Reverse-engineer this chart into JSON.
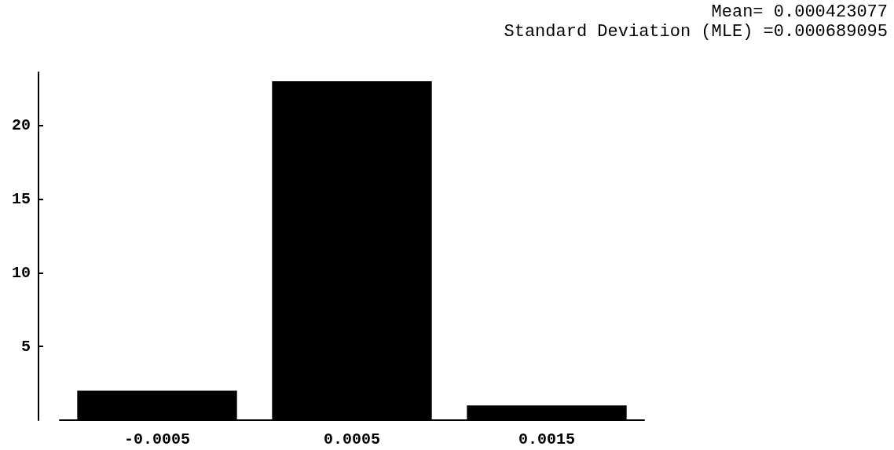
{
  "chart_data": {
    "type": "bar",
    "categories": [
      "-0.0005",
      "0.0005",
      "0.0015"
    ],
    "values": [
      2,
      23,
      1
    ],
    "color": "#000000",
    "ylim": [
      0,
      23.6
    ],
    "yticks": [
      5,
      10,
      15,
      20
    ],
    "grid": false,
    "annotations": [
      "Mean= 0.000423077",
      "Standard Deviation (MLE) =0.000689095"
    ]
  }
}
